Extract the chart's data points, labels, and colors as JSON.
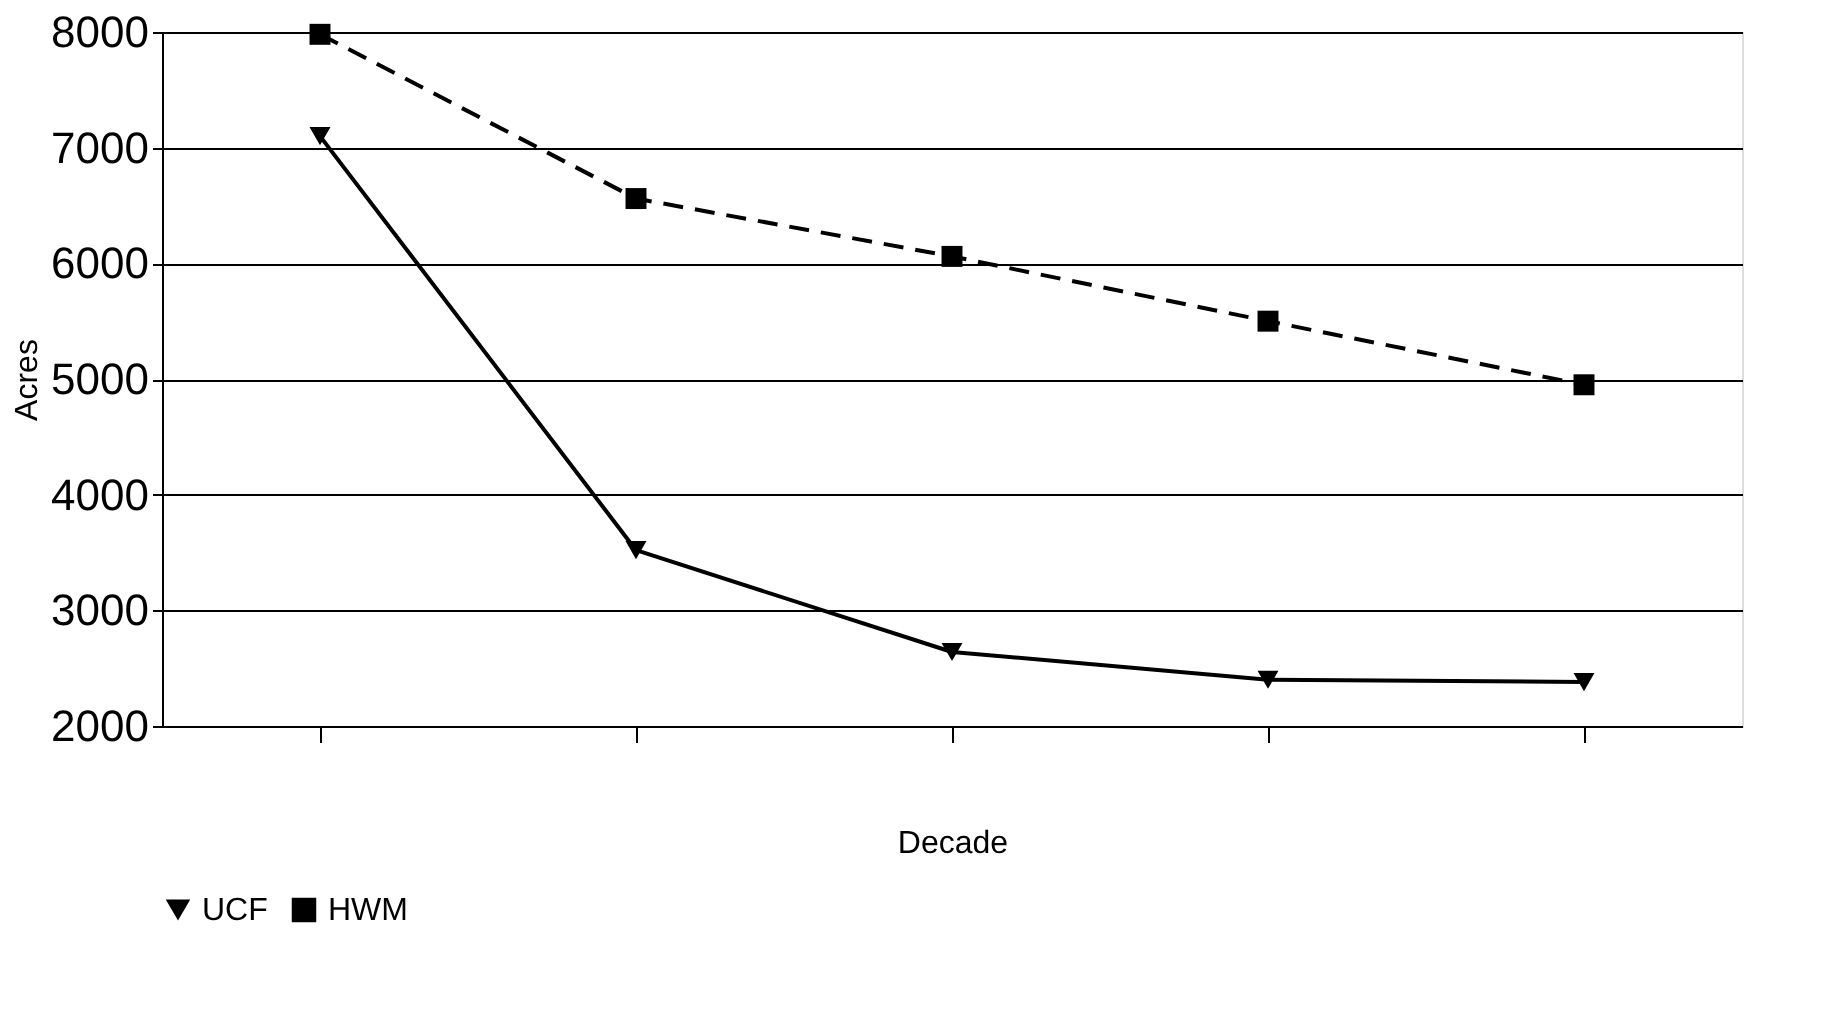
{
  "chart_data": {
    "type": "line",
    "xlabel": "Decade",
    "ylabel": "Acres",
    "categories": [
      null,
      null,
      null,
      null,
      null
    ],
    "series": [
      {
        "name": "UCF",
        "color": "#000000",
        "values": [
          7100,
          3520,
          2640,
          2400,
          2380
        ],
        "marker": "triangle-down",
        "line_style": "solid"
      },
      {
        "name": "HWM",
        "color": "#000000",
        "values": [
          7980,
          6560,
          6060,
          5500,
          4950
        ],
        "marker": "square",
        "line_style": "dashed"
      }
    ],
    "ylim": [
      2000,
      8000
    ],
    "yticks": [
      2000,
      3000,
      4000,
      5000,
      6000,
      7000,
      8000
    ],
    "grid": "y",
    "legend": "bottom"
  }
}
